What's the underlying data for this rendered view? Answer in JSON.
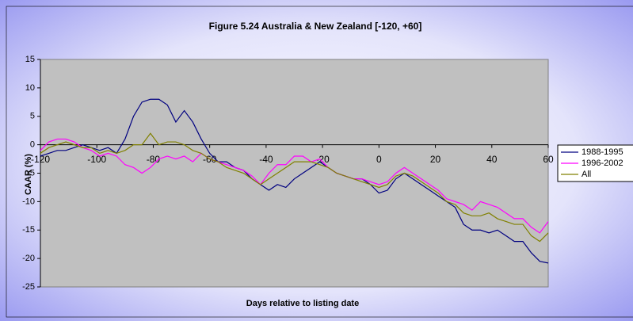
{
  "chart_data": {
    "type": "line",
    "title": "Figure 5.24 Australia & New Zealand [-120, +60]",
    "x_label": "Days relative to listing date",
    "y_label": "CAAR (%)",
    "x": [
      -120,
      -117,
      -114,
      -111,
      -108,
      -105,
      -102,
      -99,
      -96,
      -93,
      -90,
      -87,
      -84,
      -81,
      -78,
      -75,
      -72,
      -69,
      -66,
      -63,
      -60,
      -57,
      -54,
      -51,
      -48,
      -45,
      -42,
      -39,
      -36,
      -33,
      -30,
      -27,
      -24,
      -21,
      -18,
      -15,
      -12,
      -9,
      -6,
      -3,
      0,
      3,
      6,
      9,
      12,
      15,
      18,
      21,
      24,
      27,
      30,
      33,
      36,
      39,
      42,
      45,
      48,
      51,
      54,
      57,
      60
    ],
    "series": [
      {
        "name": "1988-1995",
        "color": "#000080",
        "values": [
          -2,
          -1.5,
          -1,
          -1,
          -0.5,
          0,
          -0.5,
          -1,
          -0.5,
          -1.5,
          1,
          5,
          7.5,
          8,
          8,
          7,
          4,
          6,
          4,
          1,
          -1.5,
          -3,
          -3,
          -4,
          -4.5,
          -6,
          -7,
          -8,
          -7,
          -7.5,
          -6,
          -5,
          -4,
          -3,
          -4,
          -5,
          -5.5,
          -6,
          -6,
          -7,
          -8.5,
          -8,
          -6,
          -5,
          -6,
          -7,
          -8,
          -9,
          -10,
          -11,
          -14,
          -15,
          -15,
          -15.5,
          -15,
          -16,
          -17,
          -17,
          -19,
          -20.5,
          -20.8
        ]
      },
      {
        "name": "1996-2002",
        "color": "#ff00ff",
        "values": [
          -1,
          0.5,
          1,
          1,
          0.5,
          -0.5,
          -1,
          -2,
          -1.5,
          -2,
          -3.5,
          -4,
          -5,
          -4,
          -2.5,
          -2,
          -2.5,
          -2,
          -3,
          -1.5,
          -2.5,
          -3,
          -3.5,
          -4,
          -4.5,
          -5.5,
          -7,
          -5,
          -3.5,
          -3.5,
          -2,
          -2,
          -3,
          -2.5,
          -4,
          -5,
          -5.5,
          -6,
          -6,
          -6.5,
          -7,
          -6.5,
          -5,
          -4,
          -5,
          -6,
          -7,
          -8,
          -9.5,
          -10,
          -10.5,
          -11.5,
          -10,
          -10.5,
          -11,
          -12,
          -13,
          -13,
          -14.5,
          -15.5,
          -13.5
        ]
      },
      {
        "name": "All",
        "color": "#808000",
        "values": [
          -1.5,
          -0.5,
          0,
          0.5,
          0,
          -0.5,
          -0.5,
          -1.5,
          -1,
          -1.5,
          -1,
          0,
          0,
          2,
          0,
          0.5,
          0.5,
          0,
          -1,
          -1.5,
          -2.5,
          -3,
          -4,
          -4.5,
          -5,
          -6,
          -7,
          -6,
          -5,
          -4,
          -3,
          -3,
          -3,
          -3.5,
          -4,
          -5,
          -5.5,
          -6,
          -6.5,
          -7,
          -7.5,
          -7,
          -5.5,
          -5,
          -5.5,
          -6.5,
          -7.5,
          -8.5,
          -10,
          -10.5,
          -12,
          -12.5,
          -12.5,
          -12,
          -13,
          -13.5,
          -14,
          -14,
          -16,
          -17,
          -15.5
        ]
      }
    ],
    "xlim": [
      -120,
      60
    ],
    "xticks": [
      -120,
      -100,
      -80,
      -60,
      -40,
      -20,
      0,
      20,
      40,
      60
    ],
    "ylim": [
      -25,
      15
    ],
    "yticks": [
      -25,
      -20,
      -15,
      -10,
      -5,
      0,
      5,
      10,
      15
    ],
    "legend": "right",
    "plot_background": "#c0c0c0"
  }
}
